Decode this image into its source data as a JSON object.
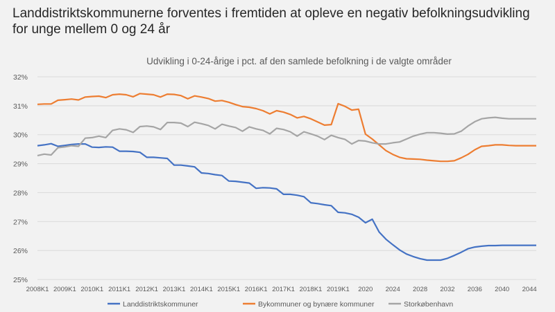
{
  "headline": "Landdistriktskommunerne forventes i fremtiden at opleve en negativ befolkningsudvikling for unge mellem 0 og 24 år",
  "chart_data": {
    "type": "line",
    "title": "Udvikling i 0-24-årige i pct. af den samlede befolkning i de valgte områder",
    "xlabel": "",
    "ylabel": "",
    "ylim": [
      25,
      32
    ],
    "y_ticks": [
      "25%",
      "26%",
      "27%",
      "28%",
      "29%",
      "30%",
      "31%",
      "32%"
    ],
    "y_tick_values": [
      25,
      26,
      27,
      28,
      29,
      30,
      31,
      32
    ],
    "gridlines": true,
    "legend_position": "bottom",
    "x_tick_labels": [
      "2008K1",
      "2009K1",
      "2010K1",
      "2011K1",
      "2012K1",
      "2013K1",
      "2014K1",
      "2015K1",
      "2016K1",
      "2017K1",
      "2018K1",
      "2019K1",
      "2020",
      "2024",
      "2028",
      "2032",
      "2036",
      "2040",
      "2044"
    ],
    "x": [
      "2008K1",
      "2008K2",
      "2008K3",
      "2008K4",
      "2009K1",
      "2009K2",
      "2009K3",
      "2009K4",
      "2010K1",
      "2010K2",
      "2010K3",
      "2010K4",
      "2011K1",
      "2011K2",
      "2011K3",
      "2011K4",
      "2012K1",
      "2012K2",
      "2012K3",
      "2012K4",
      "2013K1",
      "2013K2",
      "2013K3",
      "2013K4",
      "2014K1",
      "2014K2",
      "2014K3",
      "2014K4",
      "2015K1",
      "2015K2",
      "2015K3",
      "2015K4",
      "2016K1",
      "2016K2",
      "2016K3",
      "2016K4",
      "2017K1",
      "2017K2",
      "2017K3",
      "2017K4",
      "2018K1",
      "2018K2",
      "2018K3",
      "2018K4",
      "2019K1",
      "2019K2",
      "2019K3",
      "2019K4",
      "2020",
      "2021",
      "2022",
      "2023",
      "2024",
      "2025",
      "2026",
      "2027",
      "2028",
      "2029",
      "2030",
      "2031",
      "2032",
      "2033",
      "2034",
      "2035",
      "2036",
      "2037",
      "2038",
      "2039",
      "2040",
      "2041",
      "2042",
      "2043",
      "2044",
      "2045"
    ],
    "series": [
      {
        "name": "Landdistriktskommuner",
        "color": "#4472c4",
        "values": [
          29.62,
          29.65,
          29.69,
          29.6,
          29.63,
          29.66,
          29.68,
          29.68,
          29.57,
          29.56,
          29.58,
          29.57,
          29.43,
          29.43,
          29.42,
          29.39,
          29.22,
          29.22,
          29.2,
          29.18,
          28.95,
          28.95,
          28.92,
          28.89,
          28.68,
          28.66,
          28.62,
          28.59,
          28.4,
          28.39,
          28.36,
          28.33,
          28.15,
          28.17,
          28.16,
          28.13,
          27.94,
          27.94,
          27.91,
          27.86,
          27.65,
          27.62,
          27.58,
          27.55,
          27.32,
          27.3,
          27.25,
          27.15,
          26.96,
          27.08,
          26.64,
          26.39,
          26.2,
          26.02,
          25.88,
          25.79,
          25.72,
          25.67,
          25.67,
          25.67,
          25.73,
          25.83,
          25.94,
          26.06,
          26.12,
          26.15,
          26.17,
          26.17,
          26.18,
          26.18,
          26.18,
          26.18,
          26.18,
          26.18
        ]
      },
      {
        "name": "Bykommuner og bynære kommuner",
        "color": "#ed7d31",
        "values": [
          31.05,
          31.06,
          31.06,
          31.19,
          31.21,
          31.23,
          31.2,
          31.3,
          31.32,
          31.33,
          31.28,
          31.38,
          31.4,
          31.38,
          31.31,
          31.42,
          31.4,
          31.38,
          31.3,
          31.4,
          31.39,
          31.35,
          31.24,
          31.34,
          31.3,
          31.25,
          31.16,
          31.18,
          31.12,
          31.04,
          30.97,
          30.95,
          30.9,
          30.83,
          30.72,
          30.83,
          30.78,
          30.7,
          30.58,
          30.63,
          30.55,
          30.44,
          30.33,
          30.35,
          31.07,
          30.98,
          30.85,
          30.88,
          30.02,
          29.85,
          29.65,
          29.45,
          29.32,
          29.22,
          29.17,
          29.16,
          29.15,
          29.12,
          29.1,
          29.08,
          29.08,
          29.1,
          29.2,
          29.32,
          29.48,
          29.6,
          29.62,
          29.65,
          29.65,
          29.63,
          29.62,
          29.62,
          29.62,
          29.62
        ]
      },
      {
        "name": "Storkøbenhavn",
        "color": "#a5a5a5",
        "values": [
          29.28,
          29.33,
          29.3,
          29.55,
          29.58,
          29.62,
          29.6,
          29.88,
          29.9,
          29.95,
          29.9,
          30.15,
          30.2,
          30.17,
          30.08,
          30.28,
          30.3,
          30.27,
          30.18,
          30.42,
          30.42,
          30.4,
          30.28,
          30.43,
          30.38,
          30.32,
          30.2,
          30.36,
          30.3,
          30.25,
          30.12,
          30.27,
          30.2,
          30.15,
          30.03,
          30.22,
          30.18,
          30.1,
          29.95,
          30.1,
          30.03,
          29.95,
          29.83,
          29.98,
          29.9,
          29.84,
          29.68,
          29.8,
          29.78,
          29.72,
          29.68,
          29.68,
          29.72,
          29.75,
          29.85,
          29.95,
          30.02,
          30.07,
          30.07,
          30.05,
          30.02,
          30.03,
          30.12,
          30.3,
          30.45,
          30.55,
          30.58,
          30.6,
          30.57,
          30.55,
          30.55,
          30.55,
          30.55,
          30.55
        ]
      }
    ]
  }
}
